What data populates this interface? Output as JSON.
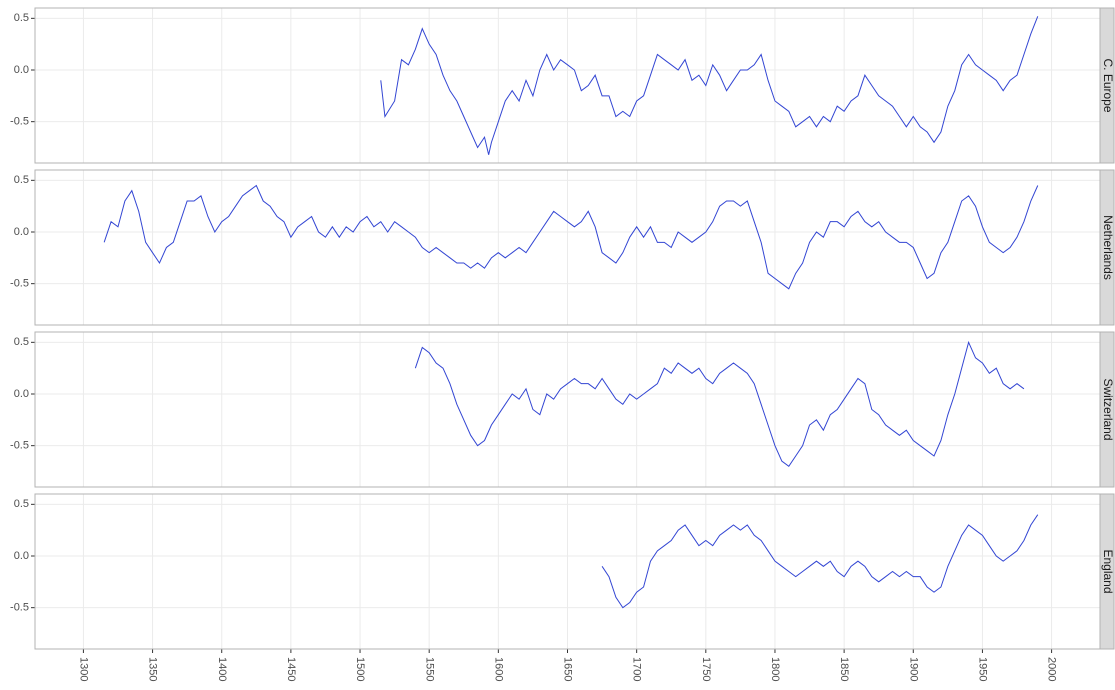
{
  "chart_data": [
    {
      "type": "line",
      "title": "C. Europe",
      "color": "#3346d3",
      "grid": true,
      "xlim": [
        1265,
        2035
      ],
      "xticks": [
        1300,
        1350,
        1400,
        1450,
        1500,
        1550,
        1600,
        1650,
        1700,
        1750,
        1800,
        1850,
        1900,
        1950,
        2000
      ],
      "ylim": [
        -0.9,
        0.6
      ],
      "yticks": [
        -0.5,
        {
          "value": 0,
          "label": "0.0"
        },
        0.5
      ],
      "x": [
        1515,
        1518,
        1525,
        1530,
        1535,
        1540,
        1545,
        1550,
        1555,
        1560,
        1565,
        1570,
        1575,
        1580,
        1585,
        1590,
        1593,
        1595,
        1600,
        1605,
        1610,
        1615,
        1620,
        1625,
        1630,
        1635,
        1640,
        1645,
        1650,
        1655,
        1660,
        1665,
        1670,
        1675,
        1680,
        1685,
        1690,
        1695,
        1700,
        1705,
        1710,
        1715,
        1720,
        1725,
        1730,
        1735,
        1740,
        1745,
        1750,
        1755,
        1760,
        1765,
        1770,
        1775,
        1780,
        1785,
        1790,
        1795,
        1800,
        1805,
        1810,
        1815,
        1820,
        1825,
        1830,
        1835,
        1840,
        1845,
        1850,
        1855,
        1860,
        1865,
        1870,
        1875,
        1880,
        1885,
        1890,
        1895,
        1900,
        1905,
        1910,
        1915,
        1920,
        1925,
        1930,
        1935,
        1940,
        1945,
        1950,
        1955,
        1960,
        1965,
        1970,
        1975,
        1980,
        1985,
        1990
      ],
      "values": [
        -0.1,
        -0.45,
        -0.3,
        0.1,
        0.05,
        0.2,
        0.4,
        0.25,
        0.15,
        -0.05,
        -0.2,
        -0.3,
        -0.45,
        -0.6,
        -0.75,
        -0.65,
        -0.82,
        -0.7,
        -0.5,
        -0.3,
        -0.2,
        -0.3,
        -0.1,
        -0.25,
        0.0,
        0.15,
        0.0,
        0.1,
        0.05,
        0.0,
        -0.2,
        -0.15,
        -0.05,
        -0.25,
        -0.25,
        -0.45,
        -0.4,
        -0.45,
        -0.3,
        -0.25,
        -0.05,
        0.15,
        0.1,
        0.05,
        0.0,
        0.1,
        -0.1,
        -0.05,
        -0.15,
        0.05,
        -0.05,
        -0.2,
        -0.1,
        0.0,
        0.0,
        0.05,
        0.15,
        -0.1,
        -0.3,
        -0.35,
        -0.4,
        -0.55,
        -0.5,
        -0.45,
        -0.55,
        -0.45,
        -0.5,
        -0.35,
        -0.4,
        -0.3,
        -0.25,
        -0.05,
        -0.15,
        -0.25,
        -0.3,
        -0.35,
        -0.45,
        -0.55,
        -0.45,
        -0.55,
        -0.6,
        -0.7,
        -0.6,
        -0.35,
        -0.2,
        0.05,
        0.15,
        0.05,
        0.0,
        -0.05,
        -0.1,
        -0.2,
        -0.1,
        -0.05,
        0.15,
        0.35,
        0.52
      ]
    },
    {
      "type": "line",
      "title": "Netherlands",
      "color": "#3346d3",
      "grid": true,
      "xlim": [
        1265,
        2035
      ],
      "xticks": [
        1300,
        1350,
        1400,
        1450,
        1500,
        1550,
        1600,
        1650,
        1700,
        1750,
        1800,
        1850,
        1900,
        1950,
        2000
      ],
      "ylim": [
        -0.9,
        0.6
      ],
      "yticks": [
        -0.5,
        {
          "value": 0,
          "label": "0.0"
        },
        0.5
      ],
      "x": [
        1315,
        1320,
        1325,
        1330,
        1335,
        1340,
        1345,
        1350,
        1355,
        1360,
        1365,
        1370,
        1375,
        1380,
        1385,
        1390,
        1395,
        1400,
        1405,
        1410,
        1415,
        1420,
        1425,
        1430,
        1435,
        1440,
        1445,
        1450,
        1455,
        1460,
        1465,
        1470,
        1475,
        1480,
        1485,
        1490,
        1495,
        1500,
        1505,
        1510,
        1515,
        1520,
        1525,
        1530,
        1535,
        1540,
        1545,
        1550,
        1555,
        1560,
        1565,
        1570,
        1575,
        1580,
        1585,
        1590,
        1595,
        1600,
        1605,
        1610,
        1615,
        1620,
        1625,
        1630,
        1635,
        1640,
        1645,
        1650,
        1655,
        1660,
        1665,
        1670,
        1675,
        1680,
        1685,
        1690,
        1695,
        1700,
        1705,
        1710,
        1715,
        1720,
        1725,
        1730,
        1735,
        1740,
        1745,
        1750,
        1755,
        1760,
        1765,
        1770,
        1775,
        1780,
        1785,
        1790,
        1795,
        1800,
        1805,
        1810,
        1815,
        1820,
        1825,
        1830,
        1835,
        1840,
        1845,
        1850,
        1855,
        1860,
        1865,
        1870,
        1875,
        1880,
        1885,
        1890,
        1895,
        1900,
        1905,
        1910,
        1915,
        1920,
        1925,
        1930,
        1935,
        1940,
        1945,
        1950,
        1955,
        1960,
        1965,
        1970,
        1975,
        1980,
        1985,
        1990
      ],
      "values": [
        -0.1,
        0.1,
        0.05,
        0.3,
        0.4,
        0.2,
        -0.1,
        -0.2,
        -0.3,
        -0.15,
        -0.1,
        0.1,
        0.3,
        0.3,
        0.35,
        0.15,
        0.0,
        0.1,
        0.15,
        0.25,
        0.35,
        0.4,
        0.45,
        0.3,
        0.25,
        0.15,
        0.1,
        -0.05,
        0.05,
        0.1,
        0.15,
        0.0,
        -0.05,
        0.05,
        -0.05,
        0.05,
        0.0,
        0.1,
        0.15,
        0.05,
        0.1,
        0.0,
        0.1,
        0.05,
        0.0,
        -0.05,
        -0.15,
        -0.2,
        -0.15,
        -0.2,
        -0.25,
        -0.3,
        -0.3,
        -0.35,
        -0.3,
        -0.35,
        -0.25,
        -0.2,
        -0.25,
        -0.2,
        -0.15,
        -0.2,
        -0.1,
        0.0,
        0.1,
        0.2,
        0.15,
        0.1,
        0.05,
        0.1,
        0.2,
        0.05,
        -0.2,
        -0.25,
        -0.3,
        -0.2,
        -0.05,
        0.05,
        -0.05,
        0.05,
        -0.1,
        -0.1,
        -0.15,
        0.0,
        -0.05,
        -0.1,
        -0.05,
        0.0,
        0.1,
        0.25,
        0.3,
        0.3,
        0.25,
        0.3,
        0.1,
        -0.1,
        -0.4,
        -0.45,
        -0.5,
        -0.55,
        -0.4,
        -0.3,
        -0.1,
        0.0,
        -0.05,
        0.1,
        0.1,
        0.05,
        0.15,
        0.2,
        0.1,
        0.05,
        0.1,
        0.0,
        -0.05,
        -0.1,
        -0.1,
        -0.15,
        -0.3,
        -0.45,
        -0.4,
        -0.2,
        -0.1,
        0.1,
        0.3,
        0.35,
        0.25,
        0.05,
        -0.1,
        -0.15,
        -0.2,
        -0.15,
        -0.05,
        0.1,
        0.3,
        0.45
      ]
    },
    {
      "type": "line",
      "title": "Switzerland",
      "color": "#3346d3",
      "grid": true,
      "xlim": [
        1265,
        2035
      ],
      "xticks": [
        1300,
        1350,
        1400,
        1450,
        1500,
        1550,
        1600,
        1650,
        1700,
        1750,
        1800,
        1850,
        1900,
        1950,
        2000
      ],
      "ylim": [
        -0.9,
        0.6
      ],
      "yticks": [
        -0.5,
        {
          "value": 0,
          "label": "0.0"
        },
        0.5
      ],
      "x": [
        1540,
        1545,
        1550,
        1555,
        1560,
        1565,
        1570,
        1575,
        1580,
        1585,
        1590,
        1595,
        1600,
        1605,
        1610,
        1615,
        1620,
        1625,
        1630,
        1635,
        1640,
        1645,
        1650,
        1655,
        1660,
        1665,
        1670,
        1675,
        1680,
        1685,
        1690,
        1695,
        1700,
        1705,
        1710,
        1715,
        1720,
        1725,
        1730,
        1735,
        1740,
        1745,
        1750,
        1755,
        1760,
        1765,
        1770,
        1775,
        1780,
        1785,
        1790,
        1795,
        1800,
        1805,
        1810,
        1815,
        1820,
        1825,
        1830,
        1835,
        1840,
        1845,
        1850,
        1855,
        1860,
        1865,
        1870,
        1875,
        1880,
        1885,
        1890,
        1895,
        1900,
        1905,
        1910,
        1915,
        1920,
        1925,
        1930,
        1935,
        1940,
        1945,
        1950,
        1955,
        1960,
        1965,
        1970,
        1975,
        1980
      ],
      "values": [
        0.25,
        0.45,
        0.4,
        0.3,
        0.25,
        0.1,
        -0.1,
        -0.25,
        -0.4,
        -0.5,
        -0.45,
        -0.3,
        -0.2,
        -0.1,
        0.0,
        -0.05,
        0.05,
        -0.15,
        -0.2,
        0.0,
        -0.05,
        0.05,
        0.1,
        0.15,
        0.1,
        0.1,
        0.05,
        0.15,
        0.05,
        -0.05,
        -0.1,
        0.0,
        -0.05,
        0.0,
        0.05,
        0.1,
        0.25,
        0.2,
        0.3,
        0.25,
        0.2,
        0.25,
        0.15,
        0.1,
        0.2,
        0.25,
        0.3,
        0.25,
        0.2,
        0.1,
        -0.1,
        -0.3,
        -0.5,
        -0.65,
        -0.7,
        -0.6,
        -0.5,
        -0.3,
        -0.25,
        -0.35,
        -0.2,
        -0.15,
        -0.05,
        0.05,
        0.15,
        0.1,
        -0.15,
        -0.2,
        -0.3,
        -0.35,
        -0.4,
        -0.35,
        -0.45,
        -0.5,
        -0.55,
        -0.6,
        -0.45,
        -0.2,
        0.0,
        0.25,
        0.5,
        0.35,
        0.3,
        0.2,
        0.25,
        0.1,
        0.05,
        0.1,
        0.05
      ]
    },
    {
      "type": "line",
      "title": "England",
      "color": "#3346d3",
      "grid": true,
      "xlim": [
        1265,
        2035
      ],
      "xticks": [
        1300,
        1350,
        1400,
        1450,
        1500,
        1550,
        1600,
        1650,
        1700,
        1750,
        1800,
        1850,
        1900,
        1950,
        2000
      ],
      "ylim": [
        -0.9,
        0.6
      ],
      "yticks": [
        -0.5,
        {
          "value": 0,
          "label": "0.0"
        },
        0.5
      ],
      "x": [
        1675,
        1680,
        1685,
        1690,
        1695,
        1700,
        1705,
        1710,
        1715,
        1720,
        1725,
        1730,
        1735,
        1740,
        1745,
        1750,
        1755,
        1760,
        1765,
        1770,
        1775,
        1780,
        1785,
        1790,
        1795,
        1800,
        1805,
        1810,
        1815,
        1820,
        1825,
        1830,
        1835,
        1840,
        1845,
        1850,
        1855,
        1860,
        1865,
        1870,
        1875,
        1880,
        1885,
        1890,
        1895,
        1900,
        1905,
        1910,
        1915,
        1920,
        1925,
        1930,
        1935,
        1940,
        1945,
        1950,
        1955,
        1960,
        1965,
        1970,
        1975,
        1980,
        1985,
        1990
      ],
      "values": [
        -0.1,
        -0.2,
        -0.4,
        -0.5,
        -0.45,
        -0.35,
        -0.3,
        -0.05,
        0.05,
        0.1,
        0.15,
        0.25,
        0.3,
        0.2,
        0.1,
        0.15,
        0.1,
        0.2,
        0.25,
        0.3,
        0.25,
        0.3,
        0.2,
        0.15,
        0.05,
        -0.05,
        -0.1,
        -0.15,
        -0.2,
        -0.15,
        -0.1,
        -0.05,
        -0.1,
        -0.05,
        -0.15,
        -0.2,
        -0.1,
        -0.05,
        -0.1,
        -0.2,
        -0.25,
        -0.2,
        -0.15,
        -0.2,
        -0.15,
        -0.2,
        -0.2,
        -0.3,
        -0.35,
        -0.3,
        -0.1,
        0.05,
        0.2,
        0.3,
        0.25,
        0.2,
        0.1,
        0.0,
        -0.05,
        0.0,
        0.05,
        0.15,
        0.3,
        0.4
      ]
    }
  ]
}
